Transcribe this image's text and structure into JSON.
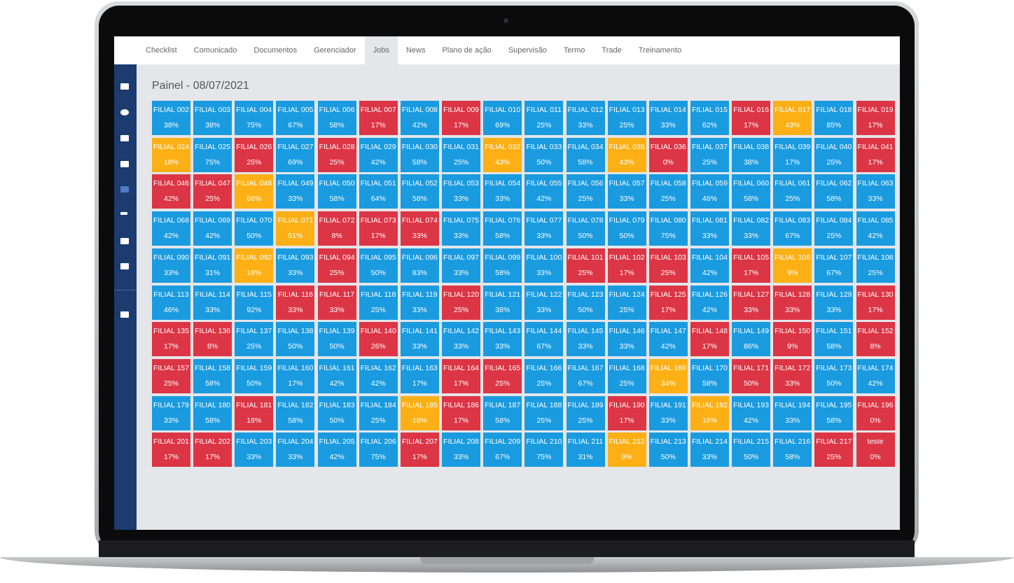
{
  "nav": {
    "items": [
      "Checklist",
      "Comunicado",
      "Documentos",
      "Gerenciador",
      "Jobs",
      "News",
      "Plano de ação",
      "Supervisão",
      "Termo",
      "Trade",
      "Treinamento"
    ],
    "active": 4
  },
  "title": "Painel - 08/07/2021",
  "tiles": [
    {
      "label": "FILIAL 002",
      "value": "38%",
      "color": "#1a9be0"
    },
    {
      "label": "FILIAL 003",
      "value": "38%",
      "color": "#1a9be0"
    },
    {
      "label": "FILIAL 004",
      "value": "75%",
      "color": "#1a9be0"
    },
    {
      "label": "FILIAL 005",
      "value": "67%",
      "color": "#1a9be0"
    },
    {
      "label": "FILIAL 006",
      "value": "58%",
      "color": "#1a9be0"
    },
    {
      "label": "FILIAL 007",
      "value": "17%",
      "color": "#dc3545"
    },
    {
      "label": "FILIAL 008",
      "value": "42%",
      "color": "#1a9be0"
    },
    {
      "label": "FILIAL 009",
      "value": "17%",
      "color": "#dc3545"
    },
    {
      "label": "FILIAL 010",
      "value": "69%",
      "color": "#1a9be0"
    },
    {
      "label": "FILIAL 011",
      "value": "25%",
      "color": "#1a9be0"
    },
    {
      "label": "FILIAL 012",
      "value": "33%",
      "color": "#1a9be0"
    },
    {
      "label": "FILIAL 013",
      "value": "25%",
      "color": "#1a9be0"
    },
    {
      "label": "FILIAL 014",
      "value": "33%",
      "color": "#1a9be0"
    },
    {
      "label": "FILIAL 015",
      "value": "62%",
      "color": "#1a9be0"
    },
    {
      "label": "FILIAL 016",
      "value": "17%",
      "color": "#dc3545"
    },
    {
      "label": "FILIAL 017",
      "value": "43%",
      "color": "#fcb016"
    },
    {
      "label": "FILIAL 018",
      "value": "85%",
      "color": "#1a9be0"
    },
    {
      "label": "FILIAL 019",
      "value": "17%",
      "color": "#dc3545"
    },
    {
      "label": "FILIAL 024",
      "value": "18%",
      "color": "#fcb016"
    },
    {
      "label": "FILIAL 025",
      "value": "75%",
      "color": "#1a9be0"
    },
    {
      "label": "FILIAL 026",
      "value": "25%",
      "color": "#dc3545"
    },
    {
      "label": "FILIAL 027",
      "value": "69%",
      "color": "#1a9be0"
    },
    {
      "label": "FILIAL 028",
      "value": "25%",
      "color": "#dc3545"
    },
    {
      "label": "FILIAL 029",
      "value": "42%",
      "color": "#1a9be0"
    },
    {
      "label": "FILIAL 030",
      "value": "58%",
      "color": "#1a9be0"
    },
    {
      "label": "FILIAL 031",
      "value": "25%",
      "color": "#1a9be0"
    },
    {
      "label": "FILIAL 032",
      "value": "43%",
      "color": "#fcb016"
    },
    {
      "label": "FILIAL 033",
      "value": "50%",
      "color": "#1a9be0"
    },
    {
      "label": "FILIAL 034",
      "value": "58%",
      "color": "#1a9be0"
    },
    {
      "label": "FILIAL 035",
      "value": "43%",
      "color": "#fcb016"
    },
    {
      "label": "FILIAL 036",
      "value": "0%",
      "color": "#dc3545"
    },
    {
      "label": "FILIAL 037",
      "value": "25%",
      "color": "#1a9be0"
    },
    {
      "label": "FILIAL 038",
      "value": "38%",
      "color": "#1a9be0"
    },
    {
      "label": "FILIAL 039",
      "value": "17%",
      "color": "#1a9be0"
    },
    {
      "label": "FILIAL 040",
      "value": "25%",
      "color": "#1a9be0"
    },
    {
      "label": "FILIAL 041",
      "value": "17%",
      "color": "#dc3545"
    },
    {
      "label": "FILIAL 046",
      "value": "42%",
      "color": "#dc3545"
    },
    {
      "label": "FILIAL 047",
      "value": "25%",
      "color": "#dc3545"
    },
    {
      "label": "FILIAL 048",
      "value": "68%",
      "color": "#fcb016"
    },
    {
      "label": "FILIAL 049",
      "value": "33%",
      "color": "#1a9be0"
    },
    {
      "label": "FILIAL 050",
      "value": "58%",
      "color": "#1a9be0"
    },
    {
      "label": "FILIAL 051",
      "value": "64%",
      "color": "#1a9be0"
    },
    {
      "label": "FILIAL 052",
      "value": "58%",
      "color": "#1a9be0"
    },
    {
      "label": "FILIAL 053",
      "value": "33%",
      "color": "#1a9be0"
    },
    {
      "label": "FILIAL 054",
      "value": "33%",
      "color": "#1a9be0"
    },
    {
      "label": "FILIAL 055",
      "value": "42%",
      "color": "#1a9be0"
    },
    {
      "label": "FILIAL 056",
      "value": "25%",
      "color": "#1a9be0"
    },
    {
      "label": "FILIAL 057",
      "value": "33%",
      "color": "#1a9be0"
    },
    {
      "label": "FILIAL 058",
      "value": "25%",
      "color": "#1a9be0"
    },
    {
      "label": "FILIAL 059",
      "value": "46%",
      "color": "#1a9be0"
    },
    {
      "label": "FILIAL 060",
      "value": "58%",
      "color": "#1a9be0"
    },
    {
      "label": "FILIAL 061",
      "value": "25%",
      "color": "#1a9be0"
    },
    {
      "label": "FILIAL 062",
      "value": "58%",
      "color": "#1a9be0"
    },
    {
      "label": "FILIAL 063",
      "value": "33%",
      "color": "#1a9be0"
    },
    {
      "label": "FILIAL 068",
      "value": "42%",
      "color": "#1a9be0"
    },
    {
      "label": "FILIAL 069",
      "value": "42%",
      "color": "#1a9be0"
    },
    {
      "label": "FILIAL 070",
      "value": "50%",
      "color": "#1a9be0"
    },
    {
      "label": "FILIAL 071",
      "value": "51%",
      "color": "#fcb016"
    },
    {
      "label": "FILIAL 072",
      "value": "8%",
      "color": "#dc3545"
    },
    {
      "label": "FILIAL 073",
      "value": "17%",
      "color": "#dc3545"
    },
    {
      "label": "FILIAL 074",
      "value": "33%",
      "color": "#dc3545"
    },
    {
      "label": "FILIAL 075",
      "value": "33%",
      "color": "#1a9be0"
    },
    {
      "label": "FILIAL 076",
      "value": "58%",
      "color": "#1a9be0"
    },
    {
      "label": "FILIAL 077",
      "value": "33%",
      "color": "#1a9be0"
    },
    {
      "label": "FILIAL 078",
      "value": "50%",
      "color": "#1a9be0"
    },
    {
      "label": "FILIAL 079",
      "value": "50%",
      "color": "#1a9be0"
    },
    {
      "label": "FILIAL 080",
      "value": "75%",
      "color": "#1a9be0"
    },
    {
      "label": "FILIAL 081",
      "value": "33%",
      "color": "#1a9be0"
    },
    {
      "label": "FILIAL 082",
      "value": "33%",
      "color": "#1a9be0"
    },
    {
      "label": "FILIAL 083",
      "value": "67%",
      "color": "#1a9be0"
    },
    {
      "label": "FILIAL 084",
      "value": "25%",
      "color": "#1a9be0"
    },
    {
      "label": "FILIAL 085",
      "value": "42%",
      "color": "#1a9be0"
    },
    {
      "label": "FILIAL 090",
      "value": "33%",
      "color": "#1a9be0"
    },
    {
      "label": "FILIAL 091",
      "value": "31%",
      "color": "#1a9be0"
    },
    {
      "label": "FILIAL 092",
      "value": "18%",
      "color": "#fcb016"
    },
    {
      "label": "FILIAL 093",
      "value": "33%",
      "color": "#1a9be0"
    },
    {
      "label": "FILIAL 094",
      "value": "25%",
      "color": "#dc3545"
    },
    {
      "label": "FILIAL 095",
      "value": "50%",
      "color": "#1a9be0"
    },
    {
      "label": "FILIAL 096",
      "value": "83%",
      "color": "#1a9be0"
    },
    {
      "label": "FILIAL 097",
      "value": "33%",
      "color": "#1a9be0"
    },
    {
      "label": "FILIAL 099",
      "value": "58%",
      "color": "#1a9be0"
    },
    {
      "label": "FILIAL 100",
      "value": "33%",
      "color": "#1a9be0"
    },
    {
      "label": "FILIAL 101",
      "value": "25%",
      "color": "#dc3545"
    },
    {
      "label": "FILIAL 102",
      "value": "17%",
      "color": "#dc3545"
    },
    {
      "label": "FILIAL 103",
      "value": "25%",
      "color": "#dc3545"
    },
    {
      "label": "FILIAL 104",
      "value": "42%",
      "color": "#1a9be0"
    },
    {
      "label": "FILIAL 105",
      "value": "17%",
      "color": "#dc3545"
    },
    {
      "label": "FILIAL 106",
      "value": "9%",
      "color": "#fcb016"
    },
    {
      "label": "FILIAL 107",
      "value": "67%",
      "color": "#1a9be0"
    },
    {
      "label": "FILIAL 108",
      "value": "25%",
      "color": "#1a9be0"
    },
    {
      "label": "FILIAL 113",
      "value": "46%",
      "color": "#1a9be0"
    },
    {
      "label": "FILIAL 114",
      "value": "33%",
      "color": "#1a9be0"
    },
    {
      "label": "FILIAL 115",
      "value": "92%",
      "color": "#1a9be0"
    },
    {
      "label": "FILIAL 116",
      "value": "33%",
      "color": "#dc3545"
    },
    {
      "label": "FILIAL 117",
      "value": "33%",
      "color": "#dc3545"
    },
    {
      "label": "FILIAL 118",
      "value": "25%",
      "color": "#1a9be0"
    },
    {
      "label": "FILIAL 119",
      "value": "33%",
      "color": "#1a9be0"
    },
    {
      "label": "FILIAL 120",
      "value": "25%",
      "color": "#dc3545"
    },
    {
      "label": "FILIAL 121",
      "value": "38%",
      "color": "#1a9be0"
    },
    {
      "label": "FILIAL 122",
      "value": "33%",
      "color": "#1a9be0"
    },
    {
      "label": "FILIAL 123",
      "value": "50%",
      "color": "#1a9be0"
    },
    {
      "label": "FILIAL 124",
      "value": "25%",
      "color": "#1a9be0"
    },
    {
      "label": "FILIAL 125",
      "value": "17%",
      "color": "#dc3545"
    },
    {
      "label": "FILIAL 126",
      "value": "42%",
      "color": "#1a9be0"
    },
    {
      "label": "FILIAL 127",
      "value": "33%",
      "color": "#dc3545"
    },
    {
      "label": "FILIAL 128",
      "value": "33%",
      "color": "#dc3545"
    },
    {
      "label": "FILIAL 129",
      "value": "33%",
      "color": "#1a9be0"
    },
    {
      "label": "FILIAL 130",
      "value": "17%",
      "color": "#dc3545"
    },
    {
      "label": "FILIAL 135",
      "value": "17%",
      "color": "#dc3545"
    },
    {
      "label": "FILIAL 136",
      "value": "8%",
      "color": "#dc3545"
    },
    {
      "label": "FILIAL 137",
      "value": "25%",
      "color": "#1a9be0"
    },
    {
      "label": "FILIAL 138",
      "value": "50%",
      "color": "#1a9be0"
    },
    {
      "label": "FILIAL 139",
      "value": "50%",
      "color": "#1a9be0"
    },
    {
      "label": "FILIAL 140",
      "value": "26%",
      "color": "#dc3545"
    },
    {
      "label": "FILIAL 141",
      "value": "33%",
      "color": "#1a9be0"
    },
    {
      "label": "FILIAL 142",
      "value": "33%",
      "color": "#1a9be0"
    },
    {
      "label": "FILIAL 143",
      "value": "33%",
      "color": "#1a9be0"
    },
    {
      "label": "FILIAL 144",
      "value": "67%",
      "color": "#1a9be0"
    },
    {
      "label": "FILIAL 145",
      "value": "33%",
      "color": "#1a9be0"
    },
    {
      "label": "FILIAL 146",
      "value": "33%",
      "color": "#1a9be0"
    },
    {
      "label": "FILIAL 147",
      "value": "42%",
      "color": "#1a9be0"
    },
    {
      "label": "FILIAL 148",
      "value": "17%",
      "color": "#dc3545"
    },
    {
      "label": "FILIAL 149",
      "value": "86%",
      "color": "#1a9be0"
    },
    {
      "label": "FILIAL 150",
      "value": "9%",
      "color": "#dc3545"
    },
    {
      "label": "FILIAL 151",
      "value": "58%",
      "color": "#1a9be0"
    },
    {
      "label": "FILIAL 152",
      "value": "8%",
      "color": "#dc3545"
    },
    {
      "label": "FILIAL 157",
      "value": "25%",
      "color": "#dc3545"
    },
    {
      "label": "FILIAL 158",
      "value": "58%",
      "color": "#1a9be0"
    },
    {
      "label": "FILIAL 159",
      "value": "50%",
      "color": "#1a9be0"
    },
    {
      "label": "FILIAL 160",
      "value": "17%",
      "color": "#1a9be0"
    },
    {
      "label": "FILIAL 161",
      "value": "42%",
      "color": "#1a9be0"
    },
    {
      "label": "FILIAL 162",
      "value": "42%",
      "color": "#1a9be0"
    },
    {
      "label": "FILIAL 163",
      "value": "17%",
      "color": "#1a9be0"
    },
    {
      "label": "FILIAL 164",
      "value": "17%",
      "color": "#dc3545"
    },
    {
      "label": "FILIAL 165",
      "value": "25%",
      "color": "#dc3545"
    },
    {
      "label": "FILIAL 166",
      "value": "25%",
      "color": "#1a9be0"
    },
    {
      "label": "FILIAL 167",
      "value": "67%",
      "color": "#1a9be0"
    },
    {
      "label": "FILIAL 168",
      "value": "25%",
      "color": "#1a9be0"
    },
    {
      "label": "FILIAL 169",
      "value": "34%",
      "color": "#fcb016"
    },
    {
      "label": "FILIAL 170",
      "value": "58%",
      "color": "#1a9be0"
    },
    {
      "label": "FILIAL 171",
      "value": "50%",
      "color": "#dc3545"
    },
    {
      "label": "FILIAL 172",
      "value": "33%",
      "color": "#dc3545"
    },
    {
      "label": "FILIAL 173",
      "value": "50%",
      "color": "#1a9be0"
    },
    {
      "label": "FILIAL 174",
      "value": "42%",
      "color": "#1a9be0"
    },
    {
      "label": "FILIAL 179",
      "value": "33%",
      "color": "#1a9be0"
    },
    {
      "label": "FILIAL 180",
      "value": "58%",
      "color": "#1a9be0"
    },
    {
      "label": "FILIAL 181",
      "value": "18%",
      "color": "#dc3545"
    },
    {
      "label": "FILIAL 182",
      "value": "58%",
      "color": "#1a9be0"
    },
    {
      "label": "FILIAL 183",
      "value": "50%",
      "color": "#1a9be0"
    },
    {
      "label": "FILIAL 184",
      "value": "25%",
      "color": "#1a9be0"
    },
    {
      "label": "FILIAL 185",
      "value": "18%",
      "color": "#fcb016"
    },
    {
      "label": "FILIAL 186",
      "value": "17%",
      "color": "#dc3545"
    },
    {
      "label": "FILIAL 187",
      "value": "58%",
      "color": "#1a9be0"
    },
    {
      "label": "FILIAL 188",
      "value": "25%",
      "color": "#1a9be0"
    },
    {
      "label": "FILIAL 189",
      "value": "25%",
      "color": "#1a9be0"
    },
    {
      "label": "FILIAL 190",
      "value": "17%",
      "color": "#dc3545"
    },
    {
      "label": "FILIAL 191",
      "value": "33%",
      "color": "#1a9be0"
    },
    {
      "label": "FILIAL 192",
      "value": "18%",
      "color": "#fcb016"
    },
    {
      "label": "FILIAL 193",
      "value": "42%",
      "color": "#1a9be0"
    },
    {
      "label": "FILIAL 194",
      "value": "33%",
      "color": "#1a9be0"
    },
    {
      "label": "FILIAL 195",
      "value": "58%",
      "color": "#1a9be0"
    },
    {
      "label": "FILIAL 196",
      "value": "0%",
      "color": "#dc3545"
    },
    {
      "label": "FILIAL 201",
      "value": "17%",
      "color": "#dc3545"
    },
    {
      "label": "FILIAL 202",
      "value": "17%",
      "color": "#dc3545"
    },
    {
      "label": "FILIAL 203",
      "value": "33%",
      "color": "#1a9be0"
    },
    {
      "label": "FILIAL 204",
      "value": "33%",
      "color": "#1a9be0"
    },
    {
      "label": "FILIAL 205",
      "value": "42%",
      "color": "#1a9be0"
    },
    {
      "label": "FILIAL 206",
      "value": "75%",
      "color": "#1a9be0"
    },
    {
      "label": "FILIAL 207",
      "value": "17%",
      "color": "#dc3545"
    },
    {
      "label": "FILIAL 208",
      "value": "33%",
      "color": "#1a9be0"
    },
    {
      "label": "FILIAL 209",
      "value": "67%",
      "color": "#1a9be0"
    },
    {
      "label": "FILIAL 210",
      "value": "75%",
      "color": "#1a9be0"
    },
    {
      "label": "FILIAL 211",
      "value": "31%",
      "color": "#1a9be0"
    },
    {
      "label": "FILIAL 212",
      "value": "9%",
      "color": "#fcb016"
    },
    {
      "label": "FILIAL 213",
      "value": "50%",
      "color": "#1a9be0"
    },
    {
      "label": "FILIAL 214",
      "value": "33%",
      "color": "#1a9be0"
    },
    {
      "label": "FILIAL 215",
      "value": "50%",
      "color": "#1a9be0"
    },
    {
      "label": "FILIAL 216",
      "value": "58%",
      "color": "#1a9be0"
    },
    {
      "label": "FILIAL 217",
      "value": "25%",
      "color": "#dc3545"
    },
    {
      "label": "teste",
      "value": "0%",
      "color": "#dc3545"
    }
  ]
}
